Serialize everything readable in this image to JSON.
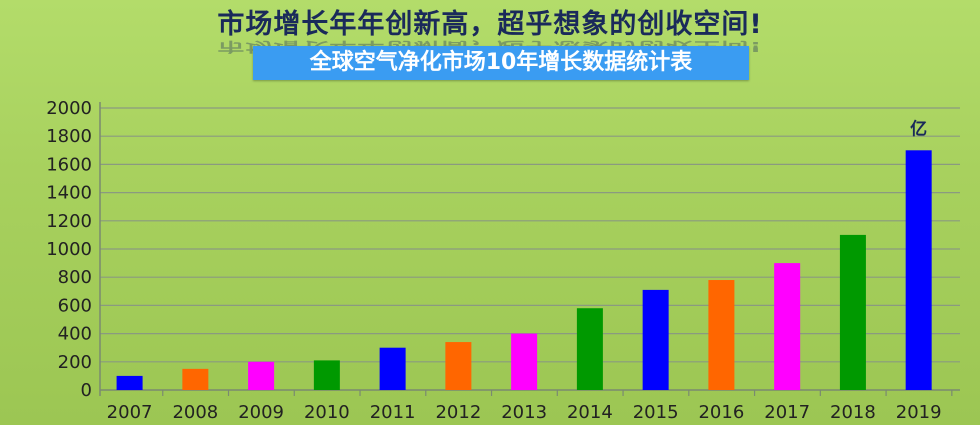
{
  "headline": "市场增长年年创新高，超乎想象的创收空间!",
  "chart_data": {
    "type": "bar",
    "title": "全球空气净化市场10年增长数据统计表",
    "unit_label": "亿",
    "categories": [
      "2007",
      "2008",
      "2009",
      "2010",
      "2011",
      "2012",
      "2013",
      "2014",
      "2015",
      "2016",
      "2017",
      "2018",
      "2019"
    ],
    "values": [
      100,
      150,
      200,
      210,
      300,
      340,
      400,
      580,
      710,
      780,
      900,
      1100,
      1700
    ],
    "bar_colors": [
      "#0000ff",
      "#ff6600",
      "#ff00ff",
      "#009900",
      "#0000ff",
      "#ff6600",
      "#ff00ff",
      "#009900",
      "#0000ff",
      "#ff6600",
      "#ff00ff",
      "#009900",
      "#0000ff"
    ],
    "ylim": [
      0,
      2000
    ],
    "yticks": [
      0,
      200,
      400,
      600,
      800,
      1000,
      1200,
      1400,
      1600,
      1800,
      2000
    ],
    "grid": true,
    "xlabel": "",
    "ylabel": ""
  }
}
